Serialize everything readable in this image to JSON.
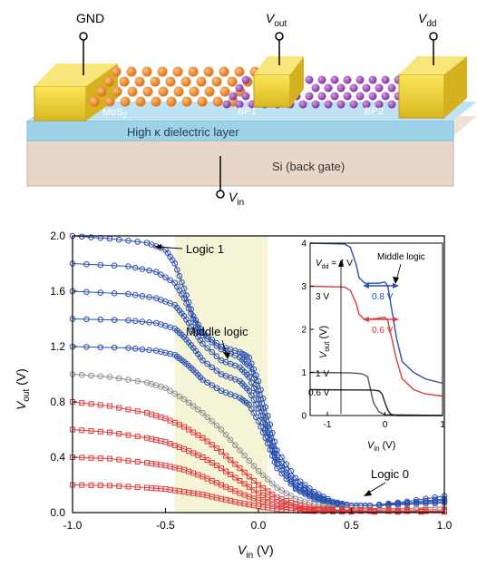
{
  "device": {
    "labels": {
      "gnd": "GND",
      "vout": "V",
      "vout_sub": "out",
      "vdd": "V",
      "vdd_sub": "dd",
      "vin": "V",
      "vin_sub": "in",
      "mos2": "MoS",
      "mos2_sub": "2",
      "bp1": "BP1",
      "bp2": "BP2",
      "dielectric": "High κ dielectric layer",
      "gate": "Si (back gate)"
    },
    "colors": {
      "electrode": "#f3d63a",
      "mos2_atom": "#ee8a2a",
      "bp_atom": "#a450c8",
      "dielectric": "#9fd4ea",
      "substrate": "#e7d4c6"
    }
  },
  "chart_data": [
    {
      "type": "line",
      "xlabel": "V",
      "xlabel_sub": "in",
      "xlabel_unit": " (V)",
      "ylabel": "V",
      "ylabel_sub": "out",
      "ylabel_unit": " (V)",
      "xlim": [
        -1.0,
        1.0
      ],
      "ylim": [
        0.0,
        2.0
      ],
      "xticks": [
        "-1.0",
        "-0.5",
        "0.0",
        "0.5",
        "1.0"
      ],
      "xtick_values": [
        -1.0,
        -0.5,
        0.0,
        0.5,
        1.0
      ],
      "yticks": [
        "0.0",
        "0.4",
        "0.8",
        "1.2",
        "1.6",
        "2.0"
      ],
      "ytick_values": [
        0.0,
        0.4,
        0.8,
        1.2,
        1.6,
        2.0
      ],
      "highlight_region": [
        -0.45,
        0.05
      ],
      "annotations": [
        "Logic 1",
        "Middle logic",
        "Logic 0"
      ],
      "colors": {
        "high": "#2a4fb0",
        "mid": "#8e8e8e",
        "low": "#e03a3a",
        "region": "#f6f4d6"
      },
      "series": [
        {
          "color": "high",
          "marker": "circle",
          "points": [
            [
              -1.0,
              2.0
            ],
            [
              -0.8,
              1.98
            ],
            [
              -0.6,
              1.95
            ],
            [
              -0.5,
              1.9
            ],
            [
              -0.45,
              1.8
            ],
            [
              -0.4,
              1.62
            ],
            [
              -0.35,
              1.42
            ],
            [
              -0.3,
              1.3
            ],
            [
              -0.2,
              1.2
            ],
            [
              -0.1,
              1.16
            ],
            [
              -0.05,
              1.12
            ],
            [
              0.0,
              0.95
            ],
            [
              0.05,
              0.7
            ],
            [
              0.1,
              0.45
            ],
            [
              0.2,
              0.25
            ],
            [
              0.3,
              0.15
            ],
            [
              0.4,
              0.08
            ],
            [
              0.5,
              0.05
            ],
            [
              0.6,
              0.05
            ],
            [
              0.8,
              0.08
            ],
            [
              1.0,
              0.12
            ]
          ]
        },
        {
          "color": "high",
          "marker": "circle",
          "points": [
            [
              -1.0,
              1.8
            ],
            [
              -0.7,
              1.78
            ],
            [
              -0.55,
              1.74
            ],
            [
              -0.45,
              1.66
            ],
            [
              -0.4,
              1.55
            ],
            [
              -0.35,
              1.4
            ],
            [
              -0.3,
              1.28
            ],
            [
              -0.2,
              1.18
            ],
            [
              -0.1,
              1.12
            ],
            [
              -0.05,
              1.06
            ],
            [
              0.0,
              0.88
            ],
            [
              0.05,
              0.62
            ],
            [
              0.1,
              0.4
            ],
            [
              0.2,
              0.22
            ],
            [
              0.3,
              0.13
            ],
            [
              0.4,
              0.07
            ],
            [
              0.5,
              0.05
            ],
            [
              0.6,
              0.05
            ],
            [
              0.8,
              0.07
            ],
            [
              1.0,
              0.1
            ]
          ]
        },
        {
          "color": "high",
          "marker": "circle",
          "points": [
            [
              -1.0,
              1.6
            ],
            [
              -0.7,
              1.58
            ],
            [
              -0.55,
              1.55
            ],
            [
              -0.45,
              1.5
            ],
            [
              -0.4,
              1.42
            ],
            [
              -0.35,
              1.32
            ],
            [
              -0.3,
              1.22
            ],
            [
              -0.2,
              1.1
            ],
            [
              -0.1,
              1.05
            ],
            [
              -0.05,
              0.98
            ],
            [
              0.0,
              0.82
            ],
            [
              0.05,
              0.58
            ],
            [
              0.1,
              0.38
            ],
            [
              0.2,
              0.2
            ],
            [
              0.3,
              0.12
            ],
            [
              0.4,
              0.07
            ],
            [
              0.5,
              0.05
            ],
            [
              0.6,
              0.05
            ],
            [
              0.8,
              0.07
            ],
            [
              1.0,
              0.09
            ]
          ]
        },
        {
          "color": "high",
          "marker": "circle",
          "points": [
            [
              -1.0,
              1.4
            ],
            [
              -0.7,
              1.39
            ],
            [
              -0.55,
              1.37
            ],
            [
              -0.45,
              1.33
            ],
            [
              -0.4,
              1.27
            ],
            [
              -0.35,
              1.19
            ],
            [
              -0.3,
              1.1
            ],
            [
              -0.2,
              1.0
            ],
            [
              -0.1,
              0.95
            ],
            [
              -0.05,
              0.88
            ],
            [
              0.0,
              0.75
            ],
            [
              0.05,
              0.55
            ],
            [
              0.1,
              0.35
            ],
            [
              0.2,
              0.18
            ],
            [
              0.3,
              0.11
            ],
            [
              0.4,
              0.07
            ],
            [
              0.5,
              0.05
            ],
            [
              0.6,
              0.05
            ],
            [
              0.8,
              0.06
            ],
            [
              1.0,
              0.08
            ]
          ]
        },
        {
          "color": "high",
          "marker": "circle",
          "points": [
            [
              -1.0,
              1.2
            ],
            [
              -0.7,
              1.19
            ],
            [
              -0.55,
              1.17
            ],
            [
              -0.45,
              1.14
            ],
            [
              -0.4,
              1.09
            ],
            [
              -0.35,
              1.03
            ],
            [
              -0.3,
              0.96
            ],
            [
              -0.2,
              0.88
            ],
            [
              -0.1,
              0.83
            ],
            [
              -0.05,
              0.78
            ],
            [
              0.0,
              0.66
            ],
            [
              0.05,
              0.5
            ],
            [
              0.1,
              0.32
            ],
            [
              0.2,
              0.17
            ],
            [
              0.3,
              0.1
            ],
            [
              0.4,
              0.06
            ],
            [
              0.5,
              0.05
            ],
            [
              0.6,
              0.05
            ],
            [
              0.8,
              0.06
            ],
            [
              1.0,
              0.07
            ]
          ]
        },
        {
          "color": "mid",
          "marker": "circle",
          "points": [
            [
              -1.0,
              1.0
            ],
            [
              -0.8,
              0.98
            ],
            [
              -0.6,
              0.94
            ],
            [
              -0.5,
              0.9
            ],
            [
              -0.4,
              0.82
            ],
            [
              -0.3,
              0.72
            ],
            [
              -0.2,
              0.6
            ],
            [
              -0.1,
              0.45
            ],
            [
              0.0,
              0.3
            ],
            [
              0.1,
              0.18
            ],
            [
              0.2,
              0.1
            ],
            [
              0.3,
              0.06
            ],
            [
              0.4,
              0.04
            ],
            [
              0.6,
              0.03
            ],
            [
              0.8,
              0.03
            ],
            [
              1.0,
              0.04
            ]
          ]
        },
        {
          "color": "low",
          "marker": "square",
          "points": [
            [
              -1.0,
              0.8
            ],
            [
              -0.8,
              0.77
            ],
            [
              -0.6,
              0.72
            ],
            [
              -0.5,
              0.68
            ],
            [
              -0.4,
              0.62
            ],
            [
              -0.3,
              0.54
            ],
            [
              -0.2,
              0.44
            ],
            [
              -0.1,
              0.32
            ],
            [
              0.0,
              0.2
            ],
            [
              0.1,
              0.11
            ],
            [
              0.2,
              0.06
            ],
            [
              0.3,
              0.03
            ],
            [
              0.4,
              0.02
            ],
            [
              0.6,
              0.02
            ],
            [
              1.0,
              0.02
            ]
          ]
        },
        {
          "color": "low",
          "marker": "square",
          "points": [
            [
              -1.0,
              0.6
            ],
            [
              -0.8,
              0.58
            ],
            [
              -0.6,
              0.54
            ],
            [
              -0.5,
              0.51
            ],
            [
              -0.4,
              0.46
            ],
            [
              -0.3,
              0.4
            ],
            [
              -0.2,
              0.32
            ],
            [
              -0.1,
              0.23
            ],
            [
              0.0,
              0.14
            ],
            [
              0.1,
              0.08
            ],
            [
              0.2,
              0.04
            ],
            [
              0.3,
              0.02
            ],
            [
              0.4,
              0.015
            ],
            [
              0.6,
              0.01
            ],
            [
              1.0,
              0.01
            ]
          ]
        },
        {
          "color": "low",
          "marker": "square",
          "points": [
            [
              -1.0,
              0.4
            ],
            [
              -0.8,
              0.39
            ],
            [
              -0.6,
              0.36
            ],
            [
              -0.5,
              0.34
            ],
            [
              -0.4,
              0.31
            ],
            [
              -0.3,
              0.26
            ],
            [
              -0.2,
              0.2
            ],
            [
              -0.1,
              0.14
            ],
            [
              0.0,
              0.09
            ],
            [
              0.1,
              0.05
            ],
            [
              0.2,
              0.03
            ],
            [
              0.3,
              0.015
            ],
            [
              0.5,
              0.01
            ],
            [
              1.0,
              0.01
            ]
          ]
        },
        {
          "color": "low",
          "marker": "square",
          "points": [
            [
              -1.0,
              0.2
            ],
            [
              -0.8,
              0.195
            ],
            [
              -0.6,
              0.18
            ],
            [
              -0.5,
              0.17
            ],
            [
              -0.4,
              0.15
            ],
            [
              -0.3,
              0.13
            ],
            [
              -0.2,
              0.1
            ],
            [
              -0.1,
              0.07
            ],
            [
              0.0,
              0.045
            ],
            [
              0.1,
              0.025
            ],
            [
              0.2,
              0.015
            ],
            [
              0.3,
              0.01
            ],
            [
              0.5,
              0.005
            ],
            [
              1.0,
              0.005
            ]
          ]
        }
      ]
    },
    {
      "type": "line",
      "xlabel": "V",
      "xlabel_sub": "in",
      "xlabel_unit": " (V)",
      "ylabel": "V",
      "ylabel_sub": "out",
      "ylabel_unit": " (V)",
      "xlim": [
        -1.3,
        1.0
      ],
      "ylim": [
        0,
        4
      ],
      "xticks": [
        "-1",
        "0",
        "1"
      ],
      "xtick_values": [
        -1,
        0,
        1
      ],
      "yticks": [
        "0",
        "1",
        "2",
        "3",
        "4"
      ],
      "ytick_values": [
        0,
        1,
        2,
        3,
        4
      ],
      "annotations": {
        "vdd_label": "V",
        "vdd_sub": "dd",
        "vdd_value": " = 4 V",
        "v3": "3 V",
        "v1": "1 V",
        "v06": "0.6 V",
        "middle_logic": "Middle logic",
        "d08": "0.8 V",
        "d06": "0.6 V"
      },
      "series": [
        {
          "name": "4 V",
          "color": "#2a4fb0",
          "points": [
            [
              -1.3,
              4.0
            ],
            [
              -0.7,
              3.98
            ],
            [
              -0.6,
              3.9
            ],
            [
              -0.5,
              3.5
            ],
            [
              -0.45,
              3.2
            ],
            [
              -0.35,
              3.07
            ],
            [
              -0.1,
              3.07
            ],
            [
              0.0,
              3.1
            ],
            [
              0.05,
              3.0
            ],
            [
              0.1,
              2.6
            ],
            [
              0.2,
              1.8
            ],
            [
              0.3,
              1.25
            ],
            [
              0.5,
              1.0
            ],
            [
              0.7,
              0.85
            ],
            [
              1.0,
              0.75
            ]
          ]
        },
        {
          "name": "3 V",
          "color": "#e03a3a",
          "points": [
            [
              -1.3,
              3.0
            ],
            [
              -0.7,
              2.98
            ],
            [
              -0.6,
              2.9
            ],
            [
              -0.5,
              2.6
            ],
            [
              -0.45,
              2.35
            ],
            [
              -0.35,
              2.22
            ],
            [
              -0.1,
              2.26
            ],
            [
              0.0,
              2.28
            ],
            [
              0.05,
              2.2
            ],
            [
              0.1,
              1.9
            ],
            [
              0.2,
              1.3
            ],
            [
              0.3,
              0.85
            ],
            [
              0.5,
              0.6
            ],
            [
              0.7,
              0.5
            ],
            [
              1.0,
              0.45
            ]
          ]
        },
        {
          "name": "1 V",
          "color": "#555555",
          "points": [
            [
              -1.3,
              1.0
            ],
            [
              -0.6,
              0.99
            ],
            [
              -0.4,
              0.97
            ],
            [
              -0.3,
              0.9
            ],
            [
              -0.25,
              0.6
            ],
            [
              -0.2,
              0.3
            ],
            [
              -0.1,
              0.08
            ],
            [
              0.0,
              0.02
            ],
            [
              1.0,
              0.0
            ]
          ]
        },
        {
          "name": "0.6 V",
          "color": "#222222",
          "points": [
            [
              -1.3,
              0.6
            ],
            [
              -0.2,
              0.59
            ],
            [
              -0.1,
              0.57
            ],
            [
              -0.05,
              0.5
            ],
            [
              0.0,
              0.3
            ],
            [
              0.05,
              0.12
            ],
            [
              0.1,
              0.03
            ],
            [
              0.2,
              0.0
            ],
            [
              1.0,
              0.0
            ]
          ]
        }
      ]
    }
  ]
}
